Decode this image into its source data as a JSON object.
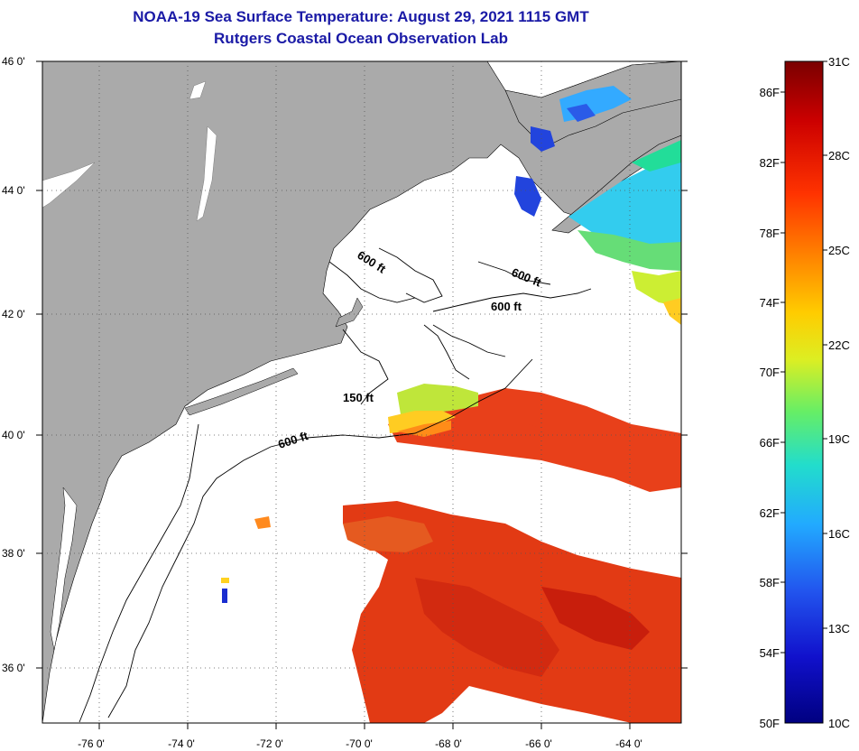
{
  "header": {
    "title_line1": "NOAA-19 Sea Surface Temperature:  August 29, 2021 1115 GMT",
    "title_line2": "Rutgers Coastal Ocean Observation Lab"
  },
  "map": {
    "lat_labels": [
      "46 0'",
      "44 0'",
      "42 0'",
      "40 0'",
      "38 0'",
      "36 0'"
    ],
    "lon_labels": [
      "-76 0'",
      "-74 0'",
      "-72 0'",
      "-70 0'",
      "-68 0'",
      "-66 0'",
      "-64 0'"
    ],
    "contour_labels": [
      "600 ft",
      "600 ft",
      "600 ft",
      "150 ft",
      "600 ft"
    ]
  },
  "colorbar": {
    "fahrenheit_labels": [
      "86F",
      "82F",
      "78F",
      "74F",
      "70F",
      "66F",
      "62F",
      "58F",
      "54F",
      "50F"
    ],
    "celsius_labels": [
      "31C",
      "28C",
      "25C",
      "22C",
      "19C",
      "16C",
      "13C",
      "10C"
    ],
    "gradient_colors": [
      "#7a0000",
      "#cc0000",
      "#ff3300",
      "#ff8800",
      "#ffcc00",
      "#ddee22",
      "#66ee66",
      "#22ddcc",
      "#22aaff",
      "#2255ee",
      "#1111cc",
      "#000080"
    ]
  },
  "colors": {
    "land": "#aaaaaa",
    "ocean": "#ffffff",
    "title": "#1a1aa6",
    "warm_sst": "#e8401a",
    "cool_sst": "#33ccee"
  }
}
